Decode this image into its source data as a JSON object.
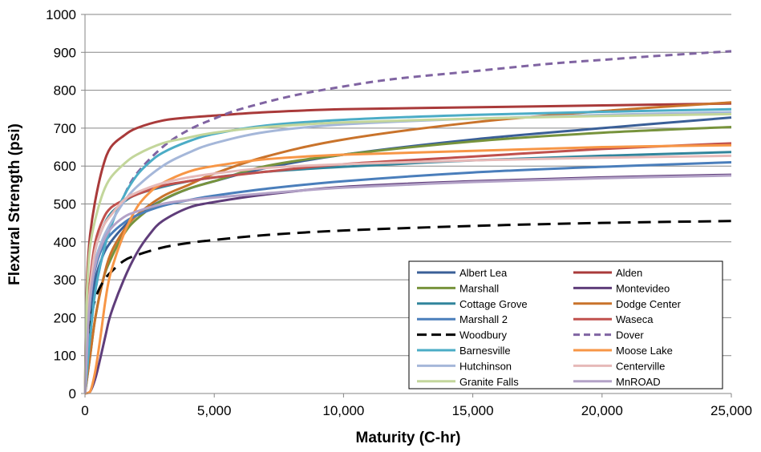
{
  "chart_data": {
    "type": "line",
    "title": "",
    "xlabel": "Maturity (C-hr)",
    "ylabel": "Flexural Strength (psi)",
    "xlim": [
      0,
      25000
    ],
    "ylim": [
      0,
      1000
    ],
    "x_ticks": [
      0,
      5000,
      10000,
      15000,
      20000,
      25000
    ],
    "x_tick_labels": [
      "0",
      "5,000",
      "10,000",
      "15,000",
      "20,000",
      "25,000"
    ],
    "y_ticks": [
      0,
      100,
      200,
      300,
      400,
      500,
      600,
      700,
      800,
      900,
      1000
    ],
    "y_tick_labels": [
      "0",
      "100",
      "200",
      "300",
      "400",
      "500",
      "600",
      "700",
      "800",
      "900",
      "1000"
    ],
    "grid": "horizontal",
    "legend_position": "bottom-right",
    "series": [
      {
        "name": "Albert Lea",
        "color": "#3A5F97",
        "dash": "solid",
        "x": [
          0,
          100,
          200,
          400,
          700,
          1000,
          1500,
          2000,
          3000,
          4000,
          5000,
          7000,
          10000,
          15000,
          20000,
          25000
        ],
        "y": [
          0,
          100,
          200,
          300,
          365,
          400,
          440,
          470,
          510,
          540,
          560,
          595,
          630,
          670,
          700,
          728
        ]
      },
      {
        "name": "Alden",
        "color": "#A93A3A",
        "dash": "solid",
        "x": [
          0,
          50,
          100,
          200,
          400,
          700,
          1000,
          1500,
          2000,
          3000,
          4000,
          5000,
          7000,
          10000,
          15000,
          20000,
          25000
        ],
        "y": [
          0,
          230,
          330,
          420,
          510,
          600,
          650,
          680,
          700,
          720,
          728,
          733,
          742,
          750,
          755,
          760,
          765
        ]
      },
      {
        "name": "Marshall",
        "color": "#77933C",
        "dash": "solid",
        "x": [
          0,
          200,
          400,
          700,
          1000,
          1500,
          2000,
          3000,
          4000,
          5000,
          7000,
          10000,
          15000,
          20000,
          25000
        ],
        "y": [
          0,
          100,
          200,
          300,
          355,
          420,
          460,
          510,
          540,
          560,
          600,
          630,
          665,
          688,
          703
        ]
      },
      {
        "name": "Montevideo",
        "color": "#5F3D7A",
        "dash": "solid",
        "x": [
          0,
          200,
          400,
          600,
          800,
          1000,
          1500,
          2000,
          2500,
          3000,
          4000,
          5000,
          7000,
          10000,
          15000,
          20000,
          25000
        ],
        "y": [
          0,
          5,
          40,
          95,
          155,
          210,
          300,
          370,
          420,
          455,
          490,
          505,
          525,
          545,
          560,
          570,
          577
        ]
      },
      {
        "name": "Cottage Grove",
        "color": "#31859C",
        "dash": "solid",
        "x": [
          0,
          100,
          200,
          400,
          700,
          1000,
          1500,
          2000,
          3000,
          4000,
          5000,
          7000,
          10000,
          15000,
          20000,
          25000
        ],
        "y": [
          0,
          180,
          280,
          380,
          440,
          475,
          505,
          525,
          545,
          560,
          570,
          585,
          598,
          615,
          627,
          637
        ]
      },
      {
        "name": "Dodge Center",
        "color": "#C9732B",
        "dash": "solid",
        "x": [
          0,
          200,
          400,
          700,
          1000,
          1500,
          2000,
          3000,
          4000,
          5000,
          7000,
          10000,
          15000,
          20000,
          25000
        ],
        "y": [
          0,
          100,
          200,
          300,
          370,
          430,
          470,
          520,
          550,
          580,
          625,
          670,
          715,
          745,
          768
        ]
      },
      {
        "name": "Marshall 2",
        "color": "#4A7EBB",
        "dash": "solid",
        "x": [
          0,
          100,
          200,
          400,
          700,
          1000,
          1500,
          2000,
          3000,
          4000,
          5000,
          7000,
          10000,
          15000,
          20000,
          25000
        ],
        "y": [
          0,
          150,
          240,
          330,
          390,
          420,
          450,
          470,
          495,
          510,
          522,
          540,
          560,
          583,
          598,
          610
        ]
      },
      {
        "name": "Waseca",
        "color": "#C0504D",
        "dash": "solid",
        "x": [
          0,
          100,
          200,
          400,
          700,
          1000,
          1500,
          2000,
          3000,
          4000,
          5000,
          7000,
          10000,
          15000,
          20000,
          25000
        ],
        "y": [
          0,
          200,
          300,
          400,
          460,
          490,
          510,
          525,
          548,
          560,
          570,
          585,
          605,
          625,
          645,
          660
        ]
      },
      {
        "name": "Woodbury",
        "color": "#000000",
        "dash": "longdash",
        "x": [
          0,
          100,
          200,
          400,
          700,
          1000,
          1500,
          2000,
          3000,
          4000,
          5000,
          7000,
          10000,
          15000,
          20000,
          25000
        ],
        "y": [
          0,
          120,
          185,
          250,
          295,
          320,
          350,
          365,
          385,
          397,
          405,
          418,
          430,
          442,
          450,
          455
        ]
      },
      {
        "name": "Dover",
        "color": "#8064A2",
        "dash": "dashed",
        "x": [
          0,
          200,
          400,
          700,
          1000,
          1500,
          2000,
          3000,
          4000,
          5000,
          6000,
          8000,
          10000,
          12000,
          15000,
          18000,
          20000,
          22000,
          25000
        ],
        "y": [
          0,
          150,
          270,
          370,
          440,
          520,
          580,
          650,
          695,
          725,
          750,
          785,
          810,
          830,
          850,
          870,
          880,
          890,
          903
        ]
      },
      {
        "name": "Barnesville",
        "color": "#4BACC6",
        "dash": "solid",
        "x": [
          0,
          200,
          400,
          700,
          1000,
          1500,
          2000,
          2500,
          3000,
          4000,
          5000,
          7000,
          10000,
          15000,
          20000,
          25000
        ],
        "y": [
          0,
          150,
          270,
          370,
          440,
          520,
          575,
          610,
          635,
          665,
          685,
          707,
          722,
          735,
          743,
          750
        ]
      },
      {
        "name": "Moose Lake",
        "color": "#F79646",
        "dash": "solid",
        "x": [
          0,
          200,
          400,
          600,
          800,
          1000,
          1500,
          2000,
          2500,
          3000,
          4000,
          5000,
          7000,
          10000,
          15000,
          20000,
          25000
        ],
        "y": [
          0,
          5,
          60,
          150,
          250,
          320,
          420,
          490,
          530,
          555,
          585,
          600,
          618,
          630,
          640,
          650,
          655
        ]
      },
      {
        "name": "Hutchinson",
        "color": "#A5B7D9",
        "dash": "solid",
        "x": [
          0,
          100,
          200,
          400,
          700,
          1000,
          1500,
          2000,
          3000,
          4000,
          5000,
          7000,
          10000,
          15000,
          20000,
          25000
        ],
        "y": [
          0,
          150,
          250,
          350,
          410,
          450,
          505,
          545,
          600,
          635,
          660,
          690,
          710,
          725,
          735,
          742
        ]
      },
      {
        "name": "Centerville",
        "color": "#E6B9B8",
        "dash": "solid",
        "x": [
          0,
          100,
          200,
          400,
          700,
          1000,
          1500,
          2000,
          3000,
          4000,
          5000,
          7000,
          10000,
          15000,
          20000,
          25000
        ],
        "y": [
          0,
          180,
          280,
          380,
          440,
          470,
          510,
          530,
          555,
          570,
          580,
          595,
          605,
          615,
          622,
          627
        ]
      },
      {
        "name": "Granite Falls",
        "color": "#C3D69B",
        "dash": "solid",
        "x": [
          0,
          50,
          100,
          200,
          400,
          700,
          1000,
          1500,
          2000,
          3000,
          4000,
          5000,
          7000,
          10000,
          15000,
          20000,
          25000
        ],
        "y": [
          0,
          200,
          300,
          390,
          460,
          530,
          570,
          605,
          630,
          660,
          675,
          688,
          703,
          715,
          725,
          732,
          737
        ]
      },
      {
        "name": "MnROAD",
        "color": "#B3A2C7",
        "dash": "solid",
        "x": [
          0,
          100,
          200,
          400,
          700,
          1000,
          1500,
          2000,
          3000,
          4000,
          5000,
          7000,
          10000,
          15000,
          20000,
          25000
        ],
        "y": [
          0,
          150,
          250,
          340,
          400,
          435,
          465,
          480,
          500,
          510,
          517,
          528,
          543,
          558,
          568,
          575
        ]
      }
    ]
  }
}
